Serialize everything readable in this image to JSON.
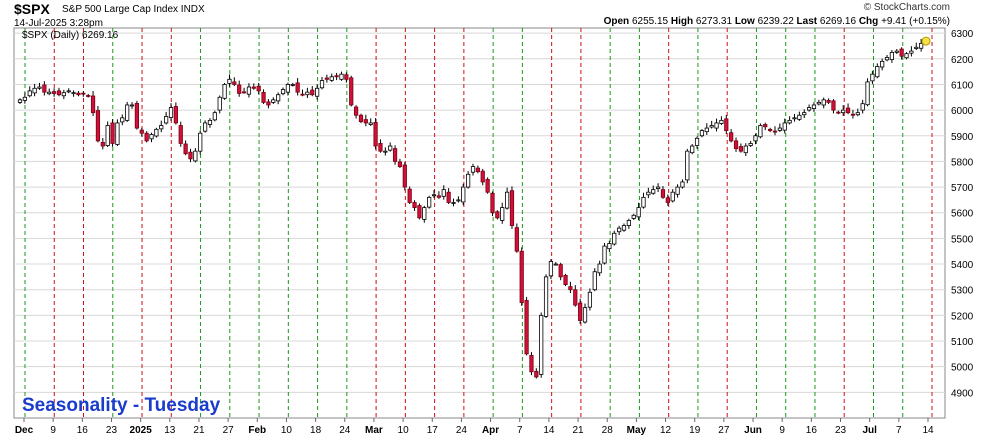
{
  "header": {
    "symbol": "$SPX",
    "name": "S&P 500 Large Cap Index",
    "exchange": "INDX",
    "datetime": "14-Jul-2025 3:28pm",
    "open_label": "Open",
    "open": "6255.15",
    "high_label": "High",
    "high": "6273.31",
    "low_label": "Low",
    "low": "6239.22",
    "last_label": "Last",
    "last": "6269.16",
    "chg_label": "Chg",
    "chg": "+9.41 (+0.15%)",
    "watermark": "© StockCharts.com",
    "legend": "$SPX (Daily) 6269.16"
  },
  "annotation": "Seasonality - Tuesday",
  "colors": {
    "up_candle_fill": "#ffffff",
    "down_candle_fill": "#d0103a",
    "tuesday_line_green": "#1a9a1a",
    "tuesday_line_red": "#d01010",
    "annotation": "#1a3ccc",
    "grid": "#d8d8d8",
    "last_marker": "#f5e24a"
  },
  "chart_data": {
    "type": "candlestick",
    "ylim": [
      4800,
      6320
    ],
    "yticks": [
      4900,
      5000,
      5100,
      5200,
      5300,
      5400,
      5500,
      5600,
      5700,
      5800,
      5900,
      6000,
      6100,
      6200,
      6300
    ],
    "x_tick_labels": [
      {
        "label": "Dec",
        "bold": true
      },
      {
        "label": "9"
      },
      {
        "label": "16"
      },
      {
        "label": "23"
      },
      {
        "label": "2025",
        "bold": true
      },
      {
        "label": "13"
      },
      {
        "label": "21"
      },
      {
        "label": "27"
      },
      {
        "label": "Feb",
        "bold": true
      },
      {
        "label": "10"
      },
      {
        "label": "18"
      },
      {
        "label": "24"
      },
      {
        "label": "Mar",
        "bold": true
      },
      {
        "label": "10"
      },
      {
        "label": "17"
      },
      {
        "label": "24"
      },
      {
        "label": "Apr",
        "bold": true
      },
      {
        "label": "7"
      },
      {
        "label": "14"
      },
      {
        "label": "21"
      },
      {
        "label": "28"
      },
      {
        "label": "May",
        "bold": true
      },
      {
        "label": "12"
      },
      {
        "label": "19"
      },
      {
        "label": "27"
      },
      {
        "label": "Jun",
        "bold": true
      },
      {
        "label": "9"
      },
      {
        "label": "16"
      },
      {
        "label": "23"
      },
      {
        "label": "Jul",
        "bold": true
      },
      {
        "label": "7"
      },
      {
        "label": "14"
      }
    ],
    "tuesday_lines": [
      {
        "week": "Dec 3",
        "color": "green"
      },
      {
        "week": "Dec 10",
        "color": "red"
      },
      {
        "week": "Dec 17",
        "color": "red"
      },
      {
        "week": "Dec 24",
        "color": "green"
      },
      {
        "week": "Dec 31",
        "color": "red"
      },
      {
        "week": "Jan 7",
        "color": "red"
      },
      {
        "week": "Jan 14",
        "color": "green"
      },
      {
        "week": "Jan 21",
        "color": "green"
      },
      {
        "week": "Jan 28",
        "color": "green"
      },
      {
        "week": "Feb 4",
        "color": "green"
      },
      {
        "week": "Feb 11",
        "color": "green"
      },
      {
        "week": "Feb 18",
        "color": "green"
      },
      {
        "week": "Feb 25",
        "color": "red"
      },
      {
        "week": "Mar 4",
        "color": "red"
      },
      {
        "week": "Mar 11",
        "color": "red"
      },
      {
        "week": "Mar 18",
        "color": "red"
      },
      {
        "week": "Mar 25",
        "color": "green"
      },
      {
        "week": "Apr 1",
        "color": "green"
      },
      {
        "week": "Apr 8",
        "color": "red"
      },
      {
        "week": "Apr 15",
        "color": "red"
      },
      {
        "week": "Apr 22",
        "color": "green"
      },
      {
        "week": "Apr 29",
        "color": "green"
      },
      {
        "week": "May 6",
        "color": "red"
      },
      {
        "week": "May 13",
        "color": "green"
      },
      {
        "week": "May 20",
        "color": "red"
      },
      {
        "week": "May 27",
        "color": "green"
      },
      {
        "week": "Jun 3",
        "color": "green"
      },
      {
        "week": "Jun 10",
        "color": "green"
      },
      {
        "week": "Jun 17",
        "color": "red"
      },
      {
        "week": "Jun 24",
        "color": "green"
      },
      {
        "week": "Jul 1",
        "color": "green"
      },
      {
        "week": "Jul 8",
        "color": "red"
      }
    ],
    "closes": [
      6040,
      6050,
      6075,
      6085,
      6090,
      6070,
      6070,
      6065,
      6060,
      6068,
      6075,
      6068,
      6060,
      6065,
      6055,
      5990,
      5880,
      5860,
      5940,
      5870,
      5950,
      5970,
      6020,
      6020,
      5930,
      5910,
      5880,
      5905,
      5925,
      5940,
      5975,
      6010,
      5950,
      5870,
      5830,
      5810,
      5840,
      5910,
      5950,
      5960,
      5990,
      6050,
      6100,
      6120,
      6100,
      6065,
      6070,
      6090,
      6085,
      6075,
      6030,
      6020,
      6040,
      6060,
      6080,
      6100,
      6100,
      6070,
      6060,
      6070,
      6060,
      6085,
      6115,
      6120,
      6130,
      6130,
      6140,
      6120,
      6020,
      5980,
      5955,
      5950,
      5950,
      5860,
      5840,
      5840,
      5860,
      5800,
      5780,
      5700,
      5640,
      5620,
      5580,
      5620,
      5660,
      5670,
      5660,
      5690,
      5640,
      5640,
      5650,
      5700,
      5750,
      5780,
      5760,
      5720,
      5680,
      5600,
      5580,
      5620,
      5680,
      5550,
      5450,
      5250,
      5050,
      4980,
      4960,
      5200,
      5350,
      5410,
      5400,
      5350,
      5320,
      5300,
      5240,
      5180,
      5230,
      5290,
      5370,
      5400,
      5470,
      5480,
      5520,
      5540,
      5550,
      5570,
      5590,
      5620,
      5660,
      5680,
      5690,
      5700,
      5660,
      5640,
      5680,
      5700,
      5720,
      5840,
      5860,
      5890,
      5920,
      5930,
      5940,
      5950,
      5960,
      5920,
      5880,
      5850,
      5840,
      5860,
      5870,
      5900,
      5940,
      5935,
      5920,
      5915,
      5930,
      5950,
      5960,
      5970,
      5980,
      5990,
      6010,
      6020,
      6030,
      6040,
      6030,
      6000,
      5990,
      6000,
      5990,
      5980,
      5990,
      6025,
      6110,
      6140,
      6170,
      6190,
      6205,
      6225,
      6230,
      6210,
      6220,
      6230,
      6245,
      6260,
      6269
    ]
  }
}
